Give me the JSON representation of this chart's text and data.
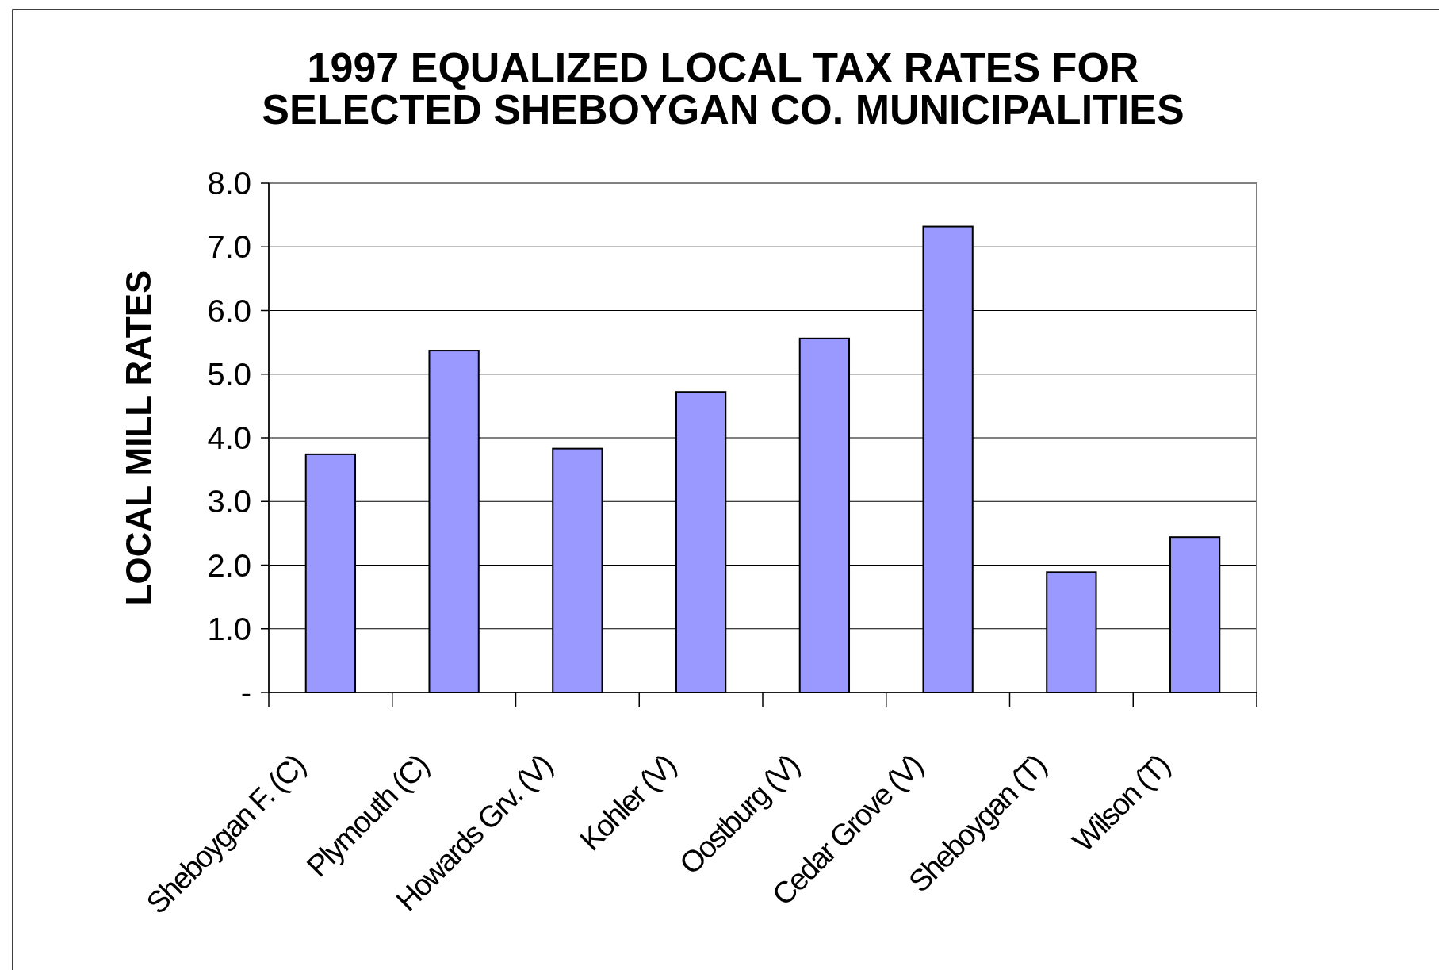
{
  "chart_data": {
    "type": "bar",
    "title": "1997 EQUALIZED LOCAL TAX RATES FOR\nSELECTED SHEBOYGAN CO. MUNICIPALITIES",
    "ylabel": "LOCAL MILL RATES",
    "categories": [
      "Sheboygan F. (C)",
      "Plymouth (C)",
      "Howards Grv. (V)",
      "Kohler (V)",
      "Oostburg (V)",
      "Cedar Grove (V)",
      "Sheboygan (T)",
      "Wilson (T)"
    ],
    "values": [
      3.74,
      5.37,
      3.83,
      4.72,
      5.56,
      7.32,
      1.89,
      2.44
    ],
    "color": "#9999ff",
    "ylim": [
      0,
      8
    ],
    "yticks": [
      {
        "value": 0,
        "label": "-"
      },
      {
        "value": 1,
        "label": "1.0"
      },
      {
        "value": 2,
        "label": "2.0"
      },
      {
        "value": 3,
        "label": "3.0"
      },
      {
        "value": 4,
        "label": "4.0"
      },
      {
        "value": 5,
        "label": "5.0"
      },
      {
        "value": 6,
        "label": "6.0"
      },
      {
        "value": 7,
        "label": "7.0"
      },
      {
        "value": 8,
        "label": "8.0"
      }
    ],
    "grid": "y"
  }
}
